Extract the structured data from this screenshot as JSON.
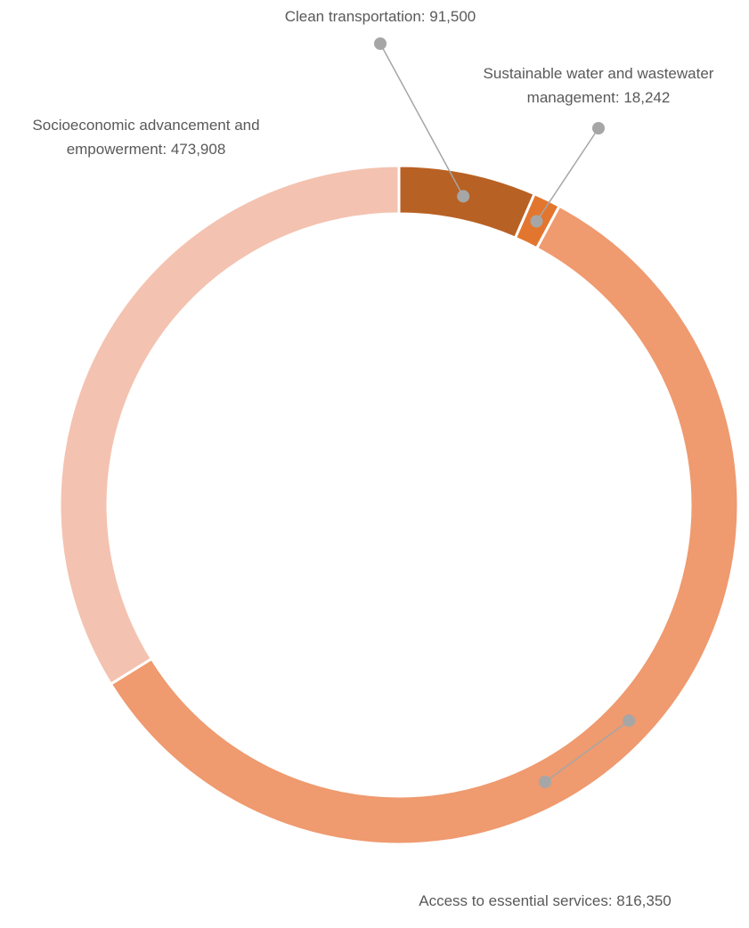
{
  "chart_data": {
    "type": "pie",
    "variant": "donut",
    "title": "",
    "legend": "none",
    "slices": [
      {
        "label": "Clean transportation",
        "value": 91500,
        "value_text": "91,500",
        "color": "#B86124"
      },
      {
        "label": "Sustainable water and wastewater management",
        "value": 18242,
        "value_text": "18,242",
        "color": "#E3762F"
      },
      {
        "label": "Access to essential services",
        "value": 816350,
        "value_text": "816,350",
        "color": "#EF9A6F"
      },
      {
        "label": "Socioeconomic advancement and empowerment",
        "value": 473908,
        "value_text": "473,908",
        "color": "#F4C2B0"
      }
    ],
    "data_labels": [
      {
        "lines": [
          "Clean transportation: 91,500"
        ]
      },
      {
        "lines": [
          "Sustainable water and wastewater",
          "management: 18,242"
        ]
      },
      {
        "lines": [
          "Access to essential services: 816,350"
        ]
      },
      {
        "lines": [
          "Socioeconomic advancement and",
          "empowerment: 473,908"
        ]
      }
    ],
    "leader_color": "#A6A6A6"
  }
}
